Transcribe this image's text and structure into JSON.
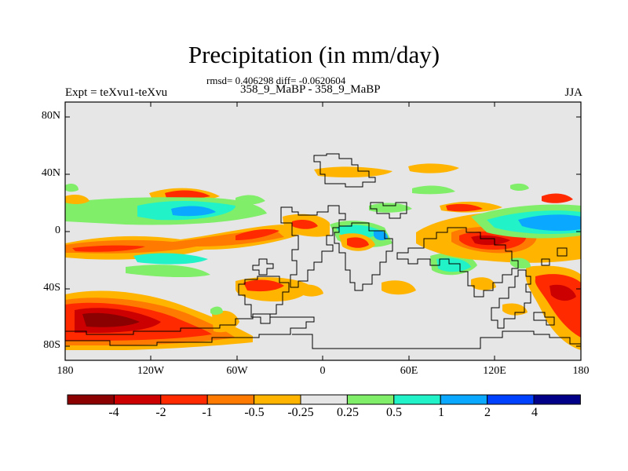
{
  "header": {
    "title": "Precipitation (in mm/day)",
    "subtitle": "rmsd= 0.406298 diff= -0.0620604",
    "left_label": "Expt = teXvu1-teXvu",
    "center_label": "358_9_MaBP - 358_9_MaBP",
    "right_label": "JJA"
  },
  "map": {
    "lat_ticks": [
      "80N",
      "40N",
      "0",
      "40S",
      "80S"
    ],
    "lon_ticks": [
      "180",
      "120W",
      "60W",
      "0",
      "60E",
      "120E",
      "180"
    ],
    "background_color": "#e6e6e6"
  },
  "colorbar": {
    "colors": [
      "#8b0000",
      "#cc0000",
      "#ff2a00",
      "#ff7a00",
      "#ffb400",
      "#e6e6e6",
      "#80ee68",
      "#22f2c8",
      "#0aa8ff",
      "#0040ff",
      "#000088"
    ],
    "labels": [
      "-4",
      "-2",
      "-1",
      "-0.5",
      "-0.25",
      "0.25",
      "0.5",
      "1",
      "2",
      "4"
    ]
  }
}
